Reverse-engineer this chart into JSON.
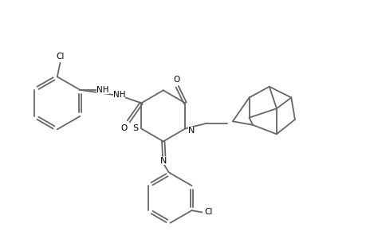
{
  "background_color": "#ffffff",
  "line_color": "#666666",
  "text_color": "#000000",
  "line_width": 1.3,
  "figsize": [
    4.6,
    3.0
  ],
  "dpi": 100,
  "xlim": [
    0.0,
    10.0
  ],
  "ylim": [
    0.5,
    7.0
  ]
}
